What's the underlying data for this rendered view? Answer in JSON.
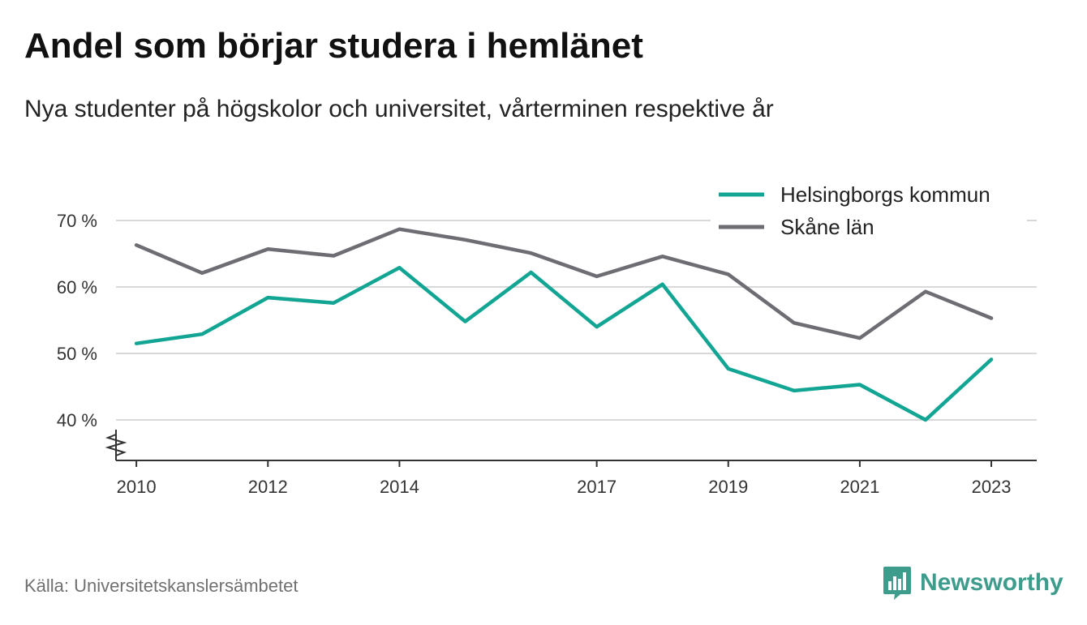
{
  "header": {
    "title": "Andel som börjar studera i hemlänet",
    "subtitle": "Nya studenter på högskolor och universitet, vårterminen respektive år"
  },
  "footer": {
    "source": "Källa: Universitetskanslersämbetet",
    "brand": "Newsworthy",
    "brand_icon": "bar-chart-logo-icon",
    "brand_color": "#3e9c8c"
  },
  "chart_data": {
    "type": "line",
    "x": [
      2010,
      2011,
      2012,
      2013,
      2014,
      2015,
      2016,
      2017,
      2018,
      2019,
      2020,
      2021,
      2022,
      2023
    ],
    "x_tick_labels": [
      "2010",
      "2012",
      "2014",
      "2017",
      "2019",
      "2021",
      "2023"
    ],
    "y_ticks": [
      40,
      50,
      60,
      70
    ],
    "y_tick_labels": [
      "40 %",
      "50 %",
      "60 %",
      "70 %"
    ],
    "ylim": [
      34,
      72
    ],
    "y_axis_break": true,
    "grid": true,
    "legend_position": "top-right",
    "series": [
      {
        "name": "Helsingborgs kommun",
        "color": "#12a594",
        "values": [
          51.5,
          52.9,
          58.4,
          57.6,
          62.9,
          54.8,
          62.2,
          54.0,
          60.4,
          47.7,
          44.4,
          45.3,
          40.0,
          49.1
        ]
      },
      {
        "name": "Skåne län",
        "color": "#6f6d74",
        "values": [
          66.3,
          62.1,
          65.7,
          64.7,
          68.7,
          67.1,
          65.1,
          61.6,
          64.6,
          61.9,
          54.6,
          52.3,
          59.3,
          55.3
        ]
      }
    ]
  }
}
